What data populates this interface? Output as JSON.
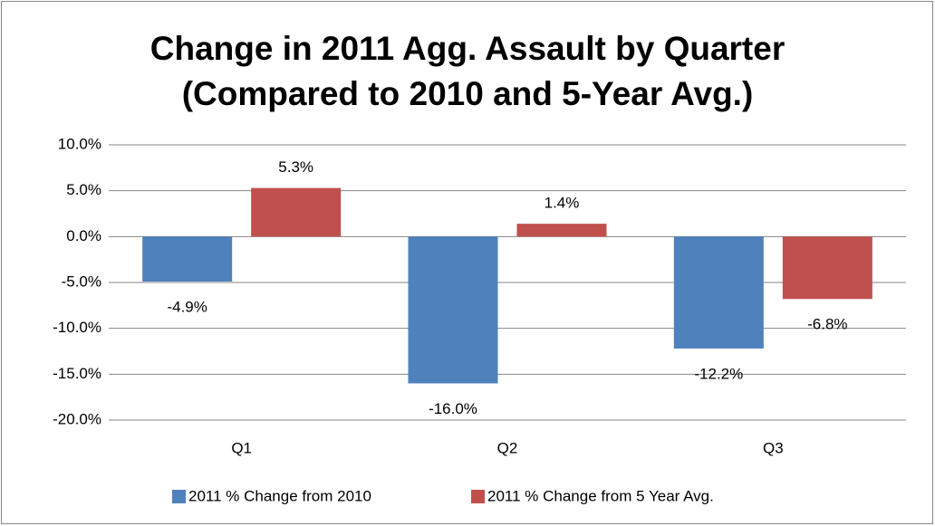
{
  "chart_data": {
    "type": "bar",
    "title": [
      "Change in 2011 Agg. Assault by Quarter",
      "(Compared to 2010 and 5-Year Avg.)"
    ],
    "categories": [
      "Q1",
      "Q2",
      "Q3"
    ],
    "series": [
      {
        "name": "2011 % Change from 2010",
        "color": "#4f81bd",
        "values": [
          -4.9,
          -16.0,
          -12.2
        ],
        "value_labels": [
          "-4.9%",
          "-16.0%",
          "-12.2%"
        ]
      },
      {
        "name": "2011 % Change from 5 Year Avg.",
        "color": "#c0504d",
        "values": [
          5.3,
          1.4,
          -6.8
        ],
        "value_labels": [
          "5.3%",
          "1.4%",
          "-6.8%"
        ]
      }
    ],
    "ylim": [
      -20,
      10
    ],
    "yticks": [
      {
        "value": -20,
        "label": "-20.0%"
      },
      {
        "value": -15,
        "label": "-15.0%"
      },
      {
        "value": -10,
        "label": "-10.0%"
      },
      {
        "value": -5,
        "label": "-5.0%"
      },
      {
        "value": 0,
        "label": "0.0%"
      },
      {
        "value": 5,
        "label": "5.0%"
      },
      {
        "value": 10,
        "label": "10.0%"
      }
    ],
    "grid": true,
    "legend": "bottom"
  }
}
